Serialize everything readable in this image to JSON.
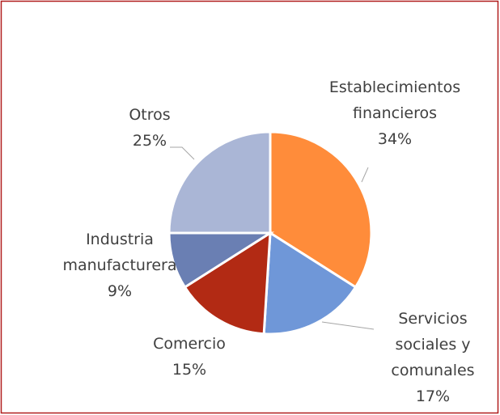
{
  "chart_data": {
    "type": "pie",
    "categories": [
      "Establecimientos financieros",
      "Servicios sociales y comunales",
      "Comercio",
      "Industria manufacturera",
      "Otros"
    ],
    "values": [
      34,
      17,
      15,
      9,
      25
    ],
    "value_labels": [
      "34%",
      "17%",
      "15%",
      "9%",
      "25%"
    ],
    "colors": [
      "#FF8C3A",
      "#6F97D8",
      "#B22A14",
      "#6A7FB3",
      "#AAB6D6"
    ]
  }
}
